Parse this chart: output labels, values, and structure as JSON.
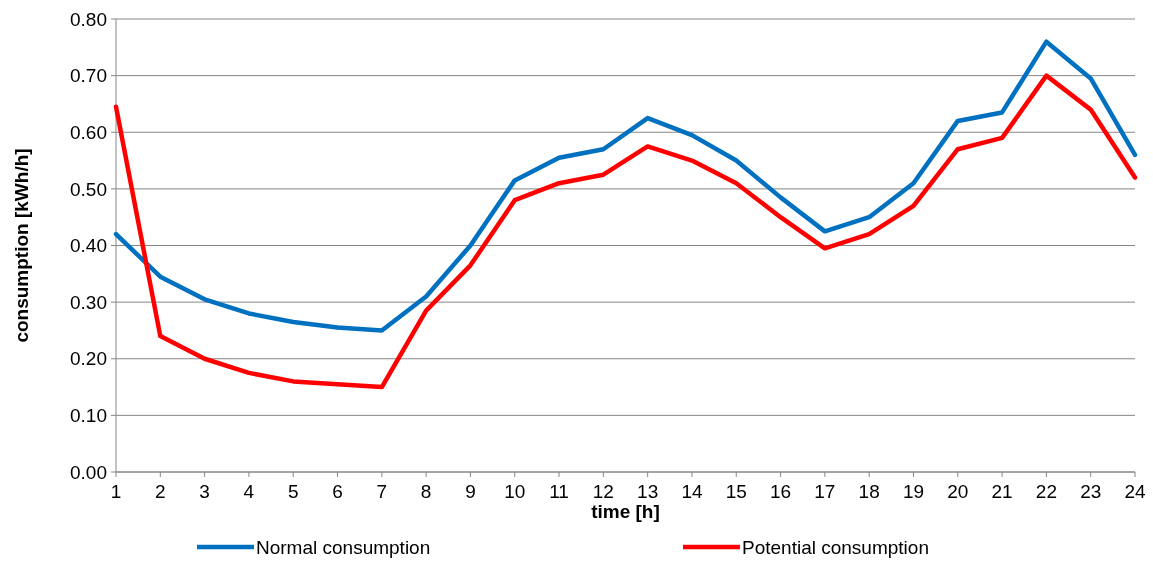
{
  "chart_data": {
    "type": "line",
    "xlabel": "time [h]",
    "ylabel": "consumption [kWh/h]",
    "x": [
      1,
      2,
      3,
      4,
      5,
      6,
      7,
      8,
      9,
      10,
      11,
      12,
      13,
      14,
      15,
      16,
      17,
      18,
      19,
      20,
      21,
      22,
      23,
      24
    ],
    "xlim": [
      1,
      24
    ],
    "xticks": [
      1,
      2,
      3,
      4,
      5,
      6,
      7,
      8,
      9,
      10,
      11,
      12,
      13,
      14,
      15,
      16,
      17,
      18,
      19,
      20,
      21,
      22,
      23,
      24
    ],
    "series": [
      {
        "name": "Normal consumption",
        "color": "#0070c0",
        "values": [
          0.42,
          0.345,
          0.305,
          0.28,
          0.265,
          0.255,
          0.25,
          0.31,
          0.4,
          0.515,
          0.555,
          0.57,
          0.625,
          0.595,
          0.55,
          0.485,
          0.425,
          0.45,
          0.51,
          0.62,
          0.635,
          0.76,
          0.695,
          0.56
        ]
      },
      {
        "name": "Potential consumption",
        "color": "#ff0000",
        "values": [
          0.645,
          0.24,
          0.2,
          0.175,
          0.16,
          0.155,
          0.15,
          0.285,
          0.365,
          0.48,
          0.51,
          0.525,
          0.575,
          0.55,
          0.51,
          0.45,
          0.395,
          0.42,
          0.47,
          0.57,
          0.59,
          0.7,
          0.64,
          0.52
        ]
      }
    ],
    "ylim": [
      0,
      0.8
    ],
    "yticks": [
      {
        "value": 0,
        "label": "0.00"
      },
      {
        "value": 0.1,
        "label": "0.10"
      },
      {
        "value": 0.2,
        "label": "0.20"
      },
      {
        "value": 0.3,
        "label": "0.30"
      },
      {
        "value": 0.4,
        "label": "0.40"
      },
      {
        "value": 0.5,
        "label": "0.50"
      },
      {
        "value": 0.6,
        "label": "0.60"
      },
      {
        "value": 0.7,
        "label": "0.70"
      },
      {
        "value": 0.8,
        "label": "0.80"
      }
    ],
    "grid": "y",
    "legend": "bottom",
    "marker": "none",
    "line_style": "solid"
  }
}
